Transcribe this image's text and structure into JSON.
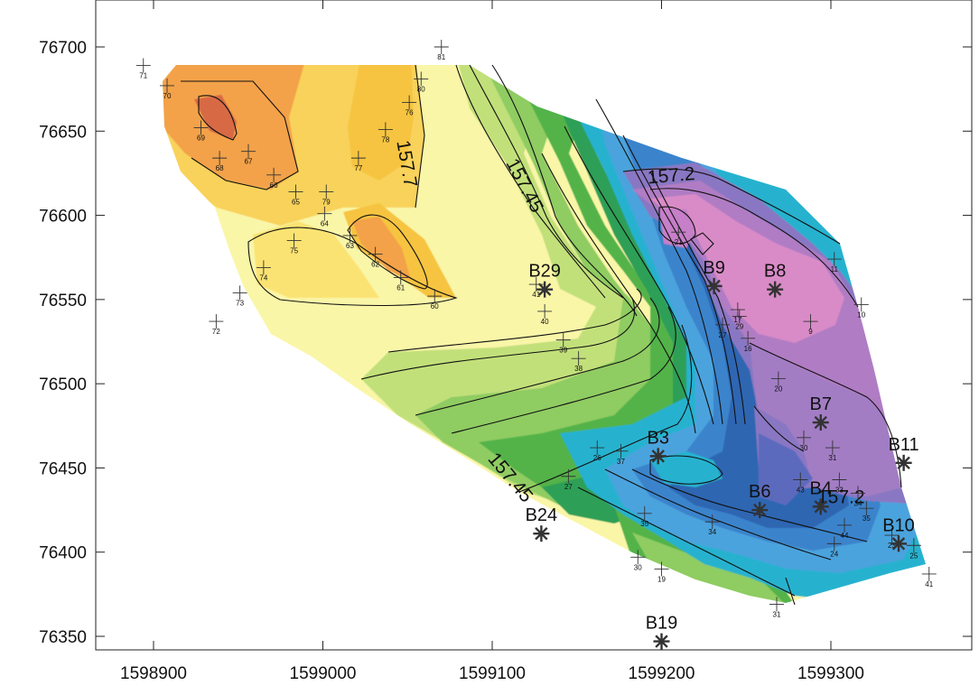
{
  "chart_data": {
    "type": "contour-map",
    "x_ticks": [
      "1598900",
      "1599000",
      "1599100",
      "1599200",
      "1599300"
    ],
    "y_ticks": [
      "76700",
      "76650",
      "76600",
      "76550",
      "76500",
      "76450",
      "76400",
      "76350"
    ],
    "xlim": [
      1598845,
      1599375
    ],
    "ylim": [
      76333,
      76720
    ],
    "contour_labels": [
      {
        "text": "157.7",
        "x": 1599046,
        "y": 76630
      },
      {
        "text": "157.45",
        "x": 1599116,
        "y": 76616
      },
      {
        "text": "157.2",
        "x": 1599206,
        "y": 76620
      },
      {
        "text": "157.45",
        "x": 1599108,
        "y": 76442
      },
      {
        "text": "157.2",
        "x": 1599306,
        "y": 76429
      }
    ],
    "wells": [
      {
        "label": "B29",
        "x": 1599131,
        "y": 76556
      },
      {
        "label": "B9",
        "x": 1599231,
        "y": 76558
      },
      {
        "label": "B8",
        "x": 1599267,
        "y": 76556
      },
      {
        "label": "B7",
        "x": 1599294,
        "y": 76477
      },
      {
        "label": "B11",
        "x": 1599343,
        "y": 76453
      },
      {
        "label": "B3",
        "x": 1599198,
        "y": 76457
      },
      {
        "label": "B6",
        "x": 1599258,
        "y": 76425
      },
      {
        "label": "B4",
        "x": 1599294,
        "y": 76427
      },
      {
        "label": "B10",
        "x": 1599340,
        "y": 76405
      },
      {
        "label": "B24",
        "x": 1599129,
        "y": 76411
      },
      {
        "label": "B19",
        "x": 1599200,
        "y": 76347
      }
    ],
    "survey_points": [
      {
        "label": "71",
        "x": 1598894,
        "y": 76689
      },
      {
        "label": "70",
        "x": 1598908,
        "y": 76677
      },
      {
        "label": "69",
        "x": 1598928,
        "y": 76652
      },
      {
        "label": "68",
        "x": 1598939,
        "y": 76634
      },
      {
        "label": "67",
        "x": 1598956,
        "y": 76638
      },
      {
        "label": "66",
        "x": 1598971,
        "y": 76624
      },
      {
        "label": "65",
        "x": 1598984,
        "y": 76614
      },
      {
        "label": "79",
        "x": 1599002,
        "y": 76614
      },
      {
        "label": "77",
        "x": 1599021,
        "y": 76634
      },
      {
        "label": "78",
        "x": 1599037,
        "y": 76651
      },
      {
        "label": "76",
        "x": 1599051,
        "y": 76667
      },
      {
        "label": "80",
        "x": 1599058,
        "y": 76681
      },
      {
        "label": "81",
        "x": 1599070,
        "y": 76700
      },
      {
        "label": "64",
        "x": 1599001,
        "y": 76601
      },
      {
        "label": "63",
        "x": 1599016,
        "y": 76588
      },
      {
        "label": "62",
        "x": 1599031,
        "y": 76577
      },
      {
        "label": "61",
        "x": 1599046,
        "y": 76563
      },
      {
        "label": "60",
        "x": 1599066,
        "y": 76552
      },
      {
        "label": "75",
        "x": 1598983,
        "y": 76585
      },
      {
        "label": "74",
        "x": 1598965,
        "y": 76569
      },
      {
        "label": "73",
        "x": 1598951,
        "y": 76554
      },
      {
        "label": "72",
        "x": 1598937,
        "y": 76537
      },
      {
        "label": "41",
        "x": 1599126,
        "y": 76559
      },
      {
        "label": "40",
        "x": 1599131,
        "y": 76543
      },
      {
        "label": "39",
        "x": 1599142,
        "y": 76526
      },
      {
        "label": "38",
        "x": 1599151,
        "y": 76515
      },
      {
        "label": "30",
        "x": 1599186,
        "y": 76397
      },
      {
        "label": "31",
        "x": 1599268,
        "y": 76369
      },
      {
        "label": "41",
        "x": 1599358,
        "y": 76387
      },
      {
        "label": "11",
        "x": 1599302,
        "y": 76574
      },
      {
        "label": "10",
        "x": 1599318,
        "y": 76547
      },
      {
        "label": "9",
        "x": 1599288,
        "y": 76537
      },
      {
        "label": "20",
        "x": 1599269,
        "y": 76503
      },
      {
        "label": "17",
        "x": 1599245,
        "y": 76544
      },
      {
        "label": "16",
        "x": 1599251,
        "y": 76527
      },
      {
        "label": "27",
        "x": 1599236,
        "y": 76535
      },
      {
        "label": "21",
        "x": 1599210,
        "y": 76590
      },
      {
        "label": "29",
        "x": 1599246,
        "y": 76540
      },
      {
        "label": "26",
        "x": 1599162,
        "y": 76462
      },
      {
        "label": "27",
        "x": 1599145,
        "y": 76445
      },
      {
        "label": "37",
        "x": 1599176,
        "y": 76460
      },
      {
        "label": "35",
        "x": 1599190,
        "y": 76423
      },
      {
        "label": "34",
        "x": 1599230,
        "y": 76418
      },
      {
        "label": "23",
        "x": 1599336,
        "y": 76410
      },
      {
        "label": "24",
        "x": 1599302,
        "y": 76405
      },
      {
        "label": "25",
        "x": 1599349,
        "y": 76404
      },
      {
        "label": "19",
        "x": 1599200,
        "y": 76390
      },
      {
        "label": "30",
        "x": 1599284,
        "y": 76468
      },
      {
        "label": "31",
        "x": 1599301,
        "y": 76462
      },
      {
        "label": "33",
        "x": 1599305,
        "y": 76443
      },
      {
        "label": "34",
        "x": 1599316,
        "y": 76435
      },
      {
        "label": "35",
        "x": 1599321,
        "y": 76426
      },
      {
        "label": "43",
        "x": 1599282,
        "y": 76443
      },
      {
        "label": "44",
        "x": 1599308,
        "y": 76416
      }
    ],
    "color_scale": [
      "#d76b45",
      "#f3a24a",
      "#f6c441",
      "#fbe373",
      "#faf6a8",
      "#eaf08e",
      "#c2e07a",
      "#8fcc62",
      "#53b34a",
      "#2f9f56",
      "#1fa38f",
      "#26b2cf",
      "#4ca3dd",
      "#3b84cc",
      "#2f66b2",
      "#5c6bbd",
      "#8a77c3",
      "#b07cc4",
      "#d98bc7",
      "#e795cf",
      "#e69acd"
    ]
  }
}
